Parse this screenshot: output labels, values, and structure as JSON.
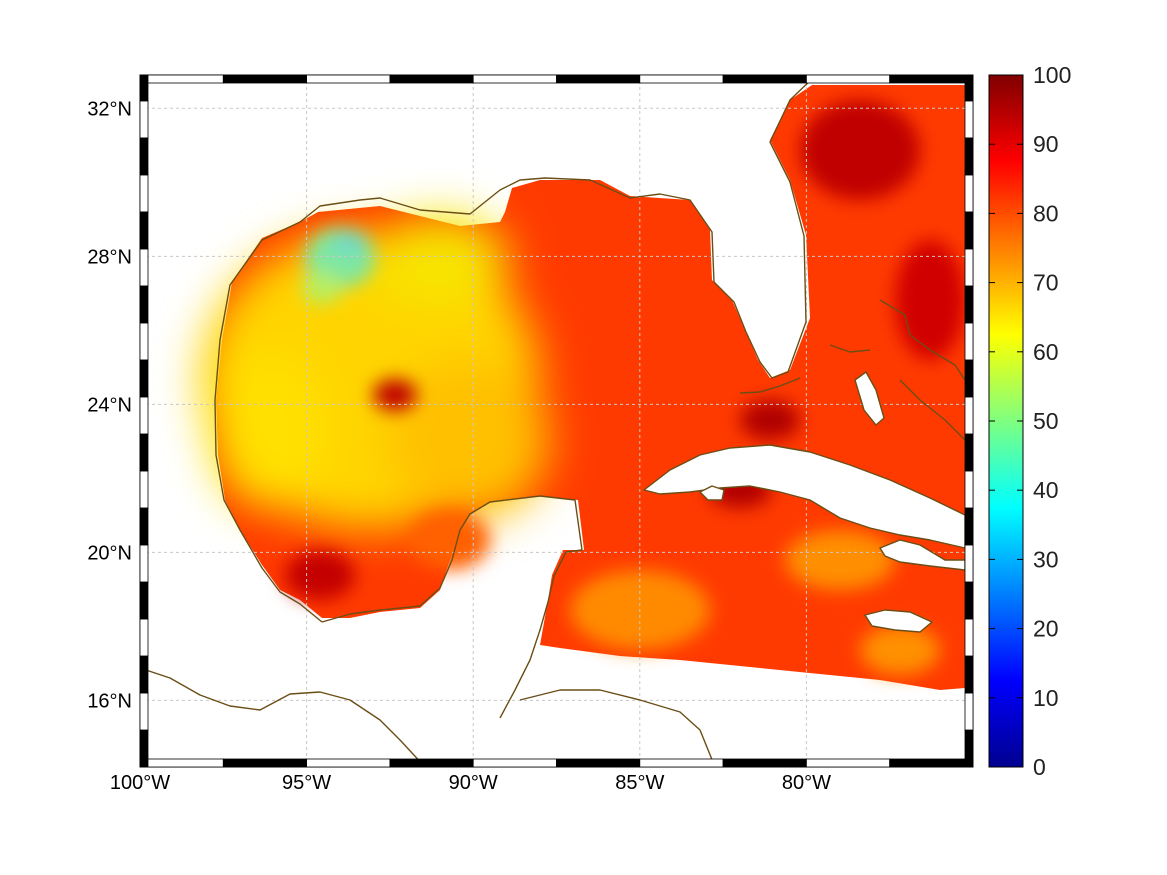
{
  "map": {
    "projection": "equidistant cylindrical",
    "lon_range": [
      -100,
      -75
    ],
    "lat_range": [
      14.2,
      32.9
    ],
    "lon_ticks": [
      -100,
      -95,
      -90,
      -85,
      -80
    ],
    "lon_tick_labels": [
      "100°W",
      "95°W",
      "90°W",
      "85°W",
      "80°W"
    ],
    "lat_ticks": [
      16,
      20,
      24,
      28,
      32
    ],
    "lat_tick_labels": [
      "16°N",
      "20°N",
      "24°N",
      "28°N",
      "32°N"
    ],
    "grid": true,
    "frame_style": "alternating black/white border",
    "coastline_color": "#6b4e16",
    "land_color": "#ffffff"
  },
  "colorbar": {
    "colormap": "jet",
    "range": [
      0,
      100
    ],
    "ticks": [
      0,
      10,
      20,
      30,
      40,
      50,
      60,
      70,
      80,
      90,
      100
    ],
    "tick_labels": [
      "0",
      "10",
      "20",
      "30",
      "40",
      "50",
      "60",
      "70",
      "80",
      "90",
      "100"
    ],
    "placement": "right"
  },
  "field_summary": {
    "western_gulf": "60-70",
    "northwest_shelf_min": "45-55",
    "eastern_gulf_and_caribbean": "80-95",
    "atlantic_east_of_florida": "85-95"
  }
}
